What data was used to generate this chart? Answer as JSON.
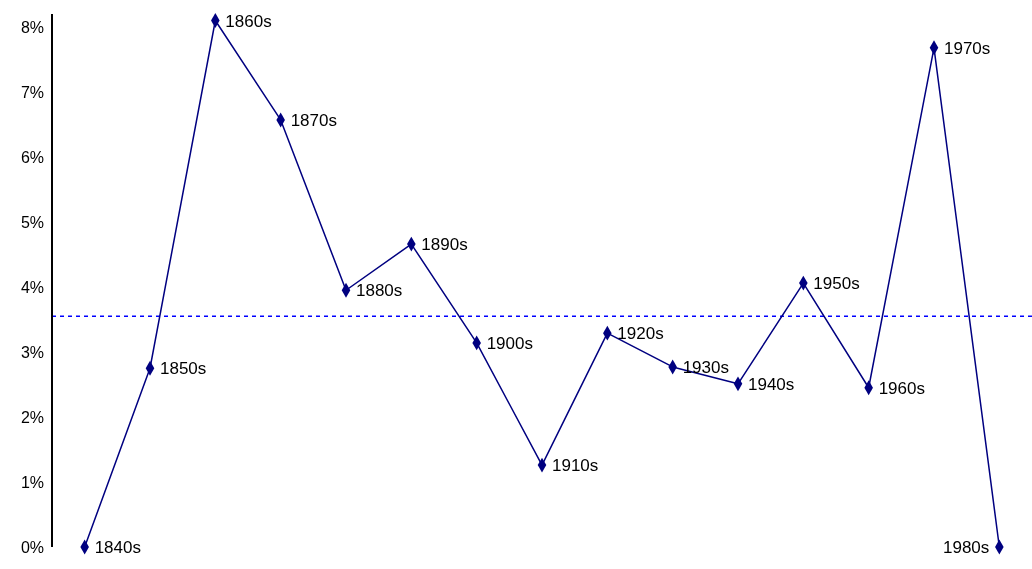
{
  "chart_data": {
    "type": "line",
    "categories": [
      null,
      null,
      null,
      null,
      null,
      null,
      null,
      null,
      null,
      null,
      null,
      null,
      null,
      null,
      null
    ],
    "series": [
      {
        "color": "#000080",
        "values": [
          0,
          2.75,
          8.1,
          6.57,
          3.95,
          4.66,
          3.14,
          1.26,
          3.29,
          2.77,
          2.51,
          4.06,
          2.45,
          7.68,
          0
        ]
      }
    ],
    "annotations": [
      "1840s",
      "1850s",
      "1860s",
      "1870s",
      "1880s",
      "1890s",
      "1900s",
      "1910s",
      "1920s",
      "1930s",
      "1940s",
      "1950s",
      "1960s",
      "1970s",
      "1980s"
    ],
    "ylim": [
      0,
      8.2
    ],
    "yticks": [
      {
        "value": 0,
        "label": "0%"
      },
      {
        "value": 1,
        "label": "1%"
      },
      {
        "value": 2,
        "label": "2%"
      },
      {
        "value": 3,
        "label": "3%"
      },
      {
        "value": 4,
        "label": "4%"
      },
      {
        "value": 5,
        "label": "5%"
      },
      {
        "value": 6,
        "label": "6%"
      },
      {
        "value": 7,
        "label": "7%"
      },
      {
        "value": 8,
        "label": "8%"
      }
    ],
    "tick_labels": "y",
    "grid": false,
    "legend": false,
    "marker": "diamond",
    "line_style": "solid",
    "ref_lines": [
      {
        "axis": "y",
        "value": 3.55,
        "color": "#0000ff",
        "line_style": "dashed"
      }
    ]
  }
}
